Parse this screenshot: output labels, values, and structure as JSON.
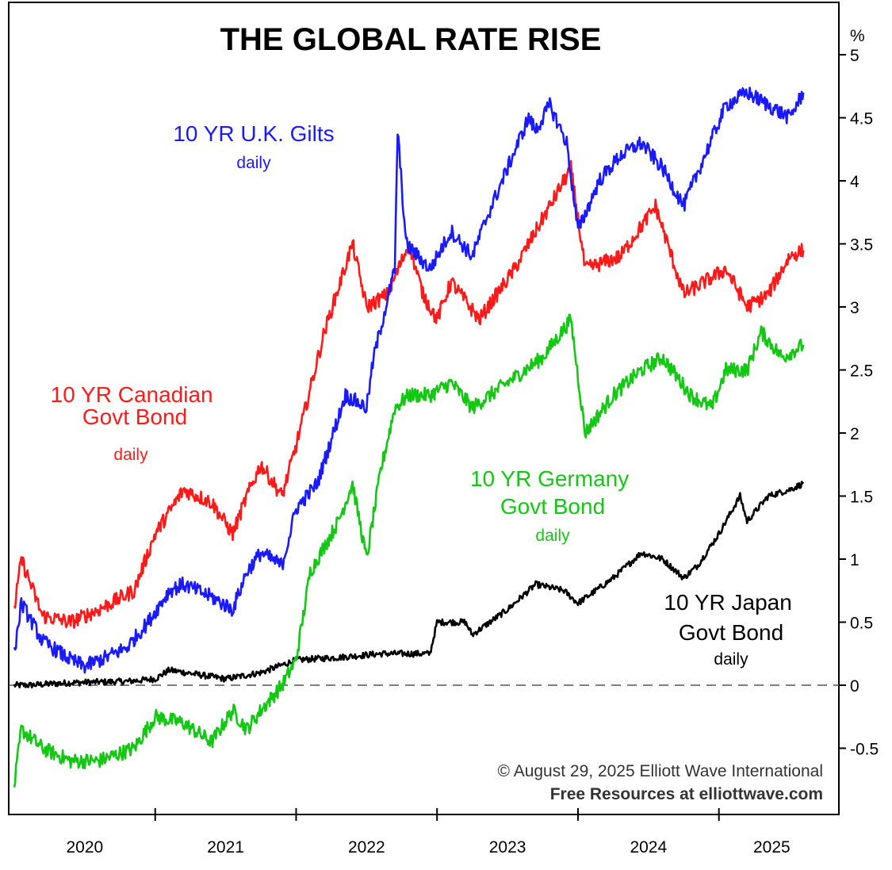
{
  "chart_data": {
    "type": "line",
    "title": "THE GLOBAL RATE RISE",
    "ylabel": "%",
    "ylim": [
      -1.0,
      5.2
    ],
    "yticks": [
      "5",
      "4.5",
      "4",
      "3.5",
      "3",
      "2.5",
      "2",
      "1.5",
      "1",
      "0.5",
      "0",
      "-0.5"
    ],
    "ytick_values": [
      5,
      4.5,
      4,
      3.5,
      3,
      2.5,
      2,
      1.5,
      1,
      0.5,
      0,
      -0.5
    ],
    "xlim": [
      2020.0,
      2025.75
    ],
    "xticks": [
      "2020",
      "2021",
      "2022",
      "2023",
      "2024",
      "2025"
    ],
    "year_boundaries": [
      2021.0,
      2022.0,
      2023.0,
      2024.0,
      2025.0
    ],
    "zero_line": "dashed",
    "series": [
      {
        "name": "10 YR U.K. Gilts",
        "subtitle": "daily",
        "color": "#1a1aff",
        "x": [
          2020.0,
          2020.05,
          2020.2,
          2020.4,
          2020.5,
          2020.65,
          2020.8,
          2020.95,
          2021.1,
          2021.2,
          2021.4,
          2021.55,
          2021.65,
          2021.75,
          2021.9,
          2022.0,
          2022.15,
          2022.35,
          2022.5,
          2022.55,
          2022.7,
          2022.72,
          2022.78,
          2022.95,
          2023.1,
          2023.25,
          2023.35,
          2023.5,
          2023.65,
          2023.7,
          2023.8,
          2023.92,
          2024.0,
          2024.15,
          2024.3,
          2024.45,
          2024.6,
          2024.75,
          2024.9,
          2025.05,
          2025.2,
          2025.35,
          2025.5,
          2025.6
        ],
        "values": [
          0.25,
          0.65,
          0.35,
          0.2,
          0.15,
          0.22,
          0.3,
          0.5,
          0.75,
          0.8,
          0.7,
          0.6,
          0.9,
          1.05,
          0.95,
          1.4,
          1.6,
          2.3,
          2.2,
          2.6,
          3.3,
          4.4,
          3.5,
          3.3,
          3.6,
          3.4,
          3.7,
          4.1,
          4.5,
          4.4,
          4.6,
          4.3,
          3.6,
          4.0,
          4.2,
          4.3,
          4.1,
          3.8,
          4.2,
          4.6,
          4.7,
          4.6,
          4.5,
          4.7
        ]
      },
      {
        "name": "10 YR Canadian Govt Bond",
        "subtitle": "daily",
        "color": "#ff1a1a",
        "x": [
          2020.0,
          2020.05,
          2020.2,
          2020.4,
          2020.6,
          2020.85,
          2021.0,
          2021.2,
          2021.4,
          2021.55,
          2021.65,
          2021.75,
          2021.9,
          2022.0,
          2022.2,
          2022.4,
          2022.5,
          2022.65,
          2022.8,
          2022.9,
          2023.0,
          2023.1,
          2023.3,
          2023.55,
          2023.75,
          2023.95,
          2024.05,
          2024.3,
          2024.55,
          2024.75,
          2024.9,
          2025.05,
          2025.2,
          2025.35,
          2025.5,
          2025.6
        ],
        "values": [
          0.6,
          1.0,
          0.55,
          0.5,
          0.6,
          0.75,
          1.2,
          1.55,
          1.45,
          1.2,
          1.5,
          1.75,
          1.5,
          1.9,
          2.8,
          3.5,
          3.0,
          3.1,
          3.5,
          3.1,
          2.9,
          3.2,
          2.9,
          3.3,
          3.7,
          4.1,
          3.3,
          3.4,
          3.8,
          3.1,
          3.2,
          3.3,
          3.0,
          3.1,
          3.4,
          3.45
        ]
      },
      {
        "name": "10 YR Germany Govt Bond",
        "subtitle": "daily",
        "color": "#13c813",
        "x": [
          2020.0,
          2020.05,
          2020.2,
          2020.4,
          2020.6,
          2020.85,
          2021.0,
          2021.2,
          2021.4,
          2021.55,
          2021.65,
          2021.75,
          2021.9,
          2022.0,
          2022.1,
          2022.3,
          2022.4,
          2022.5,
          2022.6,
          2022.7,
          2022.8,
          2022.95,
          2023.1,
          2023.25,
          2023.5,
          2023.75,
          2023.95,
          2024.05,
          2024.25,
          2024.45,
          2024.6,
          2024.8,
          2024.95,
          2025.05,
          2025.2,
          2025.3,
          2025.45,
          2025.6
        ],
        "values": [
          -0.8,
          -0.35,
          -0.5,
          -0.6,
          -0.6,
          -0.5,
          -0.25,
          -0.3,
          -0.45,
          -0.2,
          -0.35,
          -0.2,
          0.0,
          0.2,
          0.9,
          1.3,
          1.6,
          1.0,
          1.7,
          2.2,
          2.3,
          2.3,
          2.4,
          2.2,
          2.4,
          2.6,
          2.9,
          2.0,
          2.3,
          2.5,
          2.6,
          2.3,
          2.2,
          2.5,
          2.5,
          2.8,
          2.6,
          2.7
        ]
      },
      {
        "name": "10 YR Japan Govt Bond",
        "subtitle": "daily",
        "color": "#000000",
        "x": [
          2020.0,
          2020.1,
          2020.4,
          2020.8,
          2021.0,
          2021.1,
          2021.5,
          2021.75,
          2022.0,
          2022.3,
          2022.6,
          2022.95,
          2023.0,
          2023.2,
          2023.25,
          2023.5,
          2023.7,
          2023.9,
          2024.0,
          2024.25,
          2024.45,
          2024.6,
          2024.75,
          2024.85,
          2025.0,
          2025.15,
          2025.2,
          2025.35,
          2025.5,
          2025.6
        ],
        "values": [
          0.0,
          0.0,
          0.02,
          0.03,
          0.05,
          0.12,
          0.05,
          0.1,
          0.2,
          0.22,
          0.25,
          0.25,
          0.5,
          0.5,
          0.4,
          0.6,
          0.8,
          0.75,
          0.65,
          0.85,
          1.05,
          1.0,
          0.85,
          0.95,
          1.2,
          1.5,
          1.3,
          1.5,
          1.55,
          1.6
        ]
      }
    ],
    "annotations": {
      "copyright": "© August 29, 2025  Elliott Wave International",
      "source": "Free Resources at elliottwave.com"
    }
  }
}
